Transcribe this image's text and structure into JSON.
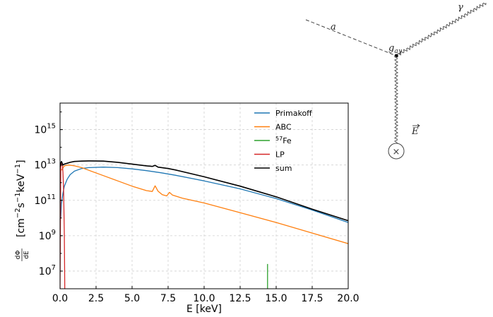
{
  "chart_data": {
    "type": "line",
    "xlabel": "E [keV]",
    "ylabel_main": "[cm",
    "ylabel_exp1": "−2",
    "ylabel_mid": "s",
    "ylabel_exp2": "−1",
    "ylabel_mid2": "keV",
    "ylabel_exp3": "−1",
    "ylabel_end": "]",
    "ylabel_frac_num": "dΦ",
    "ylabel_frac_den": "dE",
    "xlim": [
      0,
      20
    ],
    "ylim_log10": [
      6,
      16.5
    ],
    "yscale": "log",
    "grid": true,
    "legend_position": "top-right",
    "x_ticks": [
      "0.0",
      "2.5",
      "5.0",
      "7.5",
      "10.0",
      "12.5",
      "15.0",
      "17.5",
      "20.0"
    ],
    "y_ticks": [
      {
        "base": "10",
        "exp": "7",
        "value_log10": 7
      },
      {
        "base": "10",
        "exp": "9",
        "value_log10": 9
      },
      {
        "base": "10",
        "exp": "11",
        "value_log10": 11
      },
      {
        "base": "10",
        "exp": "13",
        "value_log10": 13
      },
      {
        "base": "10",
        "exp": "15",
        "value_log10": 15
      }
    ],
    "series": [
      {
        "name": "Primakoff",
        "color": "#1f77b4",
        "x": [
          0.05,
          0.1,
          0.2,
          0.3,
          0.5,
          0.7,
          1.0,
          1.5,
          2.0,
          3.0,
          4.0,
          5.0,
          6.0,
          7.0,
          8.0,
          10.0,
          12.5,
          15.0,
          17.5,
          20.0
        ],
        "log10y": [
          10.0,
          10.8,
          11.4,
          11.8,
          12.2,
          12.45,
          12.65,
          12.8,
          12.85,
          12.88,
          12.85,
          12.78,
          12.68,
          12.56,
          12.42,
          12.1,
          11.65,
          11.1,
          10.45,
          9.75
        ]
      },
      {
        "name": "ABC",
        "color": "#ff7f0e",
        "x": [
          0.1,
          0.3,
          0.6,
          1.0,
          1.5,
          2.0,
          3.0,
          4.0,
          5.0,
          6.0,
          6.4,
          6.6,
          6.8,
          7.1,
          7.4,
          7.6,
          7.8,
          8.5,
          10.0,
          12.5,
          15.0,
          17.5,
          20.0
        ],
        "log10y": [
          12.7,
          12.95,
          13.0,
          12.95,
          12.85,
          12.7,
          12.4,
          12.1,
          11.8,
          11.55,
          11.5,
          11.82,
          11.52,
          11.32,
          11.25,
          11.45,
          11.3,
          11.12,
          10.85,
          10.3,
          9.75,
          9.15,
          8.55
        ]
      },
      {
        "name": "57Fe",
        "name_sup": "57",
        "name_base": "Fe",
        "color": "#2ca02c",
        "x": [
          14.4,
          14.4
        ],
        "log10y": [
          6,
          7.4
        ]
      },
      {
        "name": "LP",
        "color": "#d62728",
        "x": [
          0.0,
          0.05,
          0.1,
          0.15,
          0.2,
          0.25,
          0.3,
          0.33
        ],
        "log10y": [
          6,
          12.9,
          13.15,
          13.1,
          12.6,
          11.5,
          9.0,
          6
        ]
      },
      {
        "name": "sum",
        "color": "#000000",
        "x": [
          0.0,
          0.05,
          0.1,
          0.2,
          0.3,
          0.5,
          0.7,
          1.0,
          1.5,
          2.0,
          3.0,
          4.0,
          5.0,
          6.0,
          6.4,
          6.6,
          6.8,
          7.5,
          8.0,
          10.0,
          12.5,
          15.0,
          17.5,
          20.0
        ],
        "log10y": [
          12.9,
          13.1,
          13.2,
          13.0,
          13.05,
          13.1,
          13.15,
          13.2,
          13.22,
          13.23,
          13.22,
          13.15,
          13.05,
          12.95,
          12.92,
          12.98,
          12.88,
          12.8,
          12.72,
          12.33,
          11.8,
          11.2,
          10.5,
          9.85
        ]
      }
    ]
  },
  "diagram": {
    "label_axion": "a",
    "label_photon": "γ",
    "label_coupling_base": "g",
    "label_coupling_sub": "aγ",
    "label_field": "E",
    "source_symbol": "×"
  }
}
